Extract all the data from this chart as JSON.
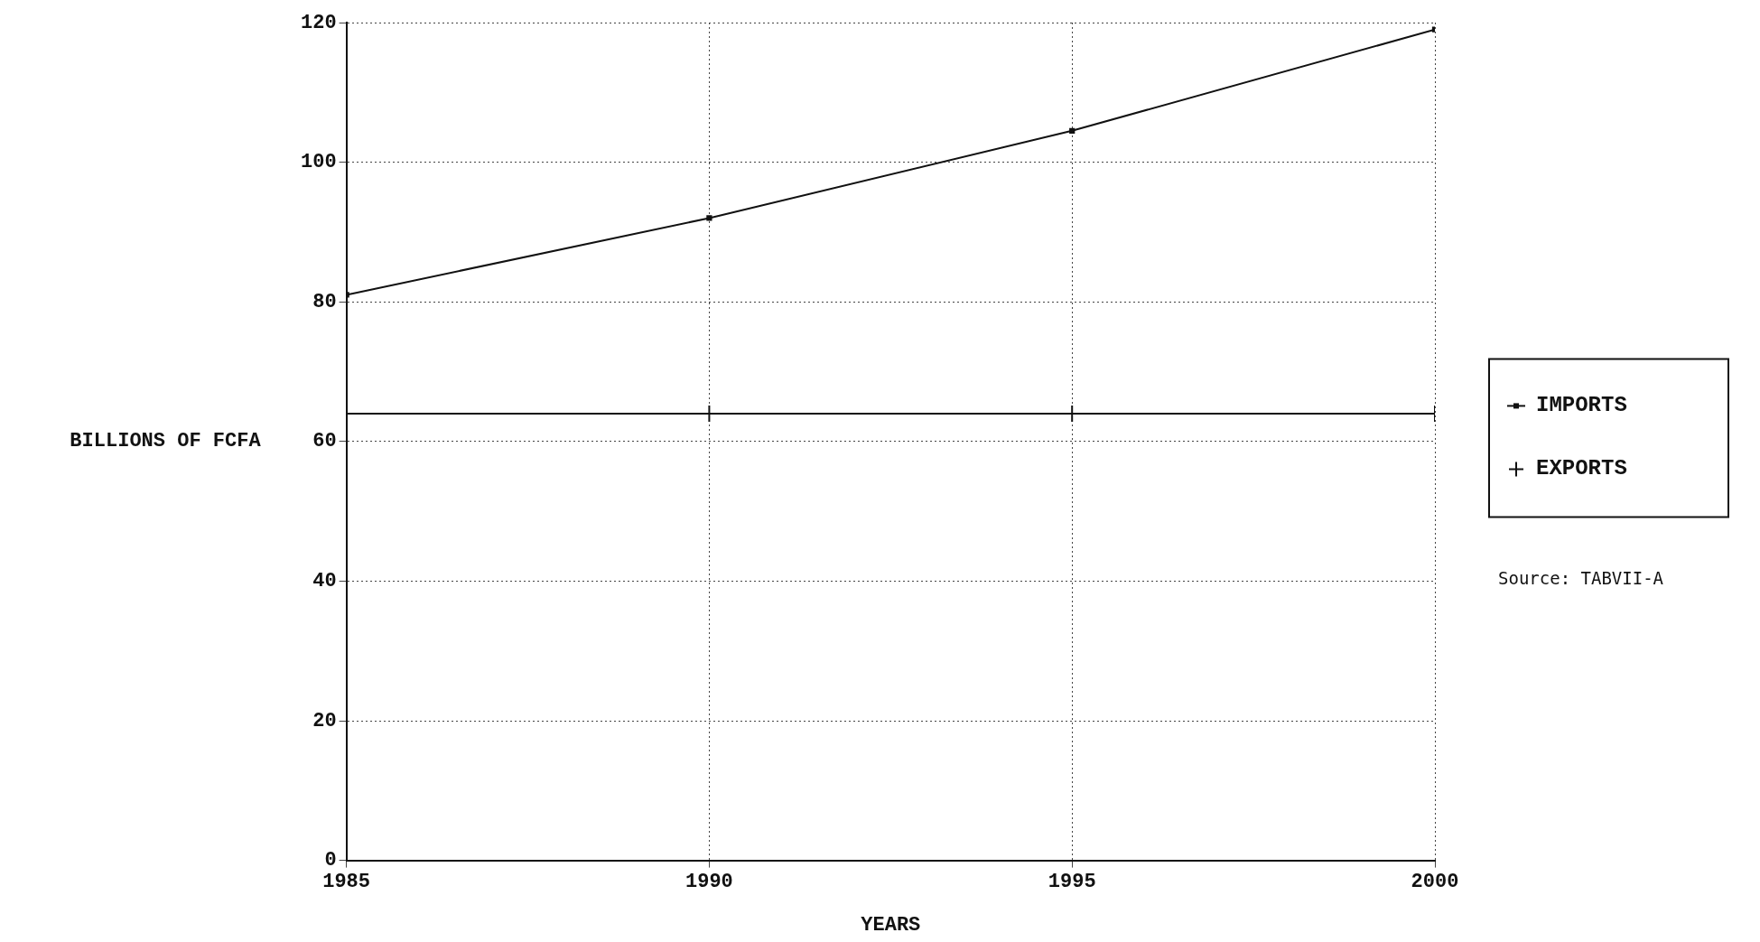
{
  "chart_data": {
    "type": "line",
    "xlabel": "YEARS",
    "ylabel": "BILLIONS OF FCFA",
    "x": [
      1985,
      1990,
      1995,
      2000
    ],
    "series": [
      {
        "name": "IMPORTS",
        "color": "#111111",
        "values": [
          81,
          92,
          104.5,
          119
        ],
        "marker": "square"
      },
      {
        "name": "EXPORTS",
        "color": "#111111",
        "values": [
          64,
          64,
          64,
          64
        ],
        "marker": "cross"
      }
    ],
    "xlim": [
      1985,
      2000
    ],
    "xticks": [
      1985,
      1990,
      1995,
      2000
    ],
    "ylim": [
      0,
      120
    ],
    "yticks": [
      0,
      20,
      40,
      60,
      80,
      100,
      120
    ],
    "grid": true,
    "legend": "right",
    "line_style": "solid",
    "annotations": [
      "Source: TABVII-A"
    ]
  }
}
